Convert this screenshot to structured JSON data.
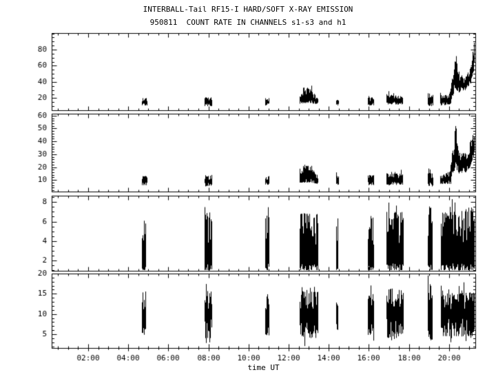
{
  "header": {
    "title": "INTERBALL-Tail RF15-I HARD/SOFT X-RAY EMISSION",
    "subtitle": "950811  COUNT RATE IN CHANNELS s1-s3 and h1"
  },
  "chart_data": {
    "type": "line",
    "title": "INTERBALL-Tail RF15-I HARD/SOFT X-RAY EMISSION",
    "subtitle": "950811  COUNT RATE IN CHANNELS s1-s3 and h1",
    "xlabel": "time UT",
    "background": "#ffffff",
    "line_color": "#000000",
    "x_range": [
      0.18,
      21.31
    ],
    "x_minor_step": 0.5,
    "x_major_ticks": [
      {
        "hour": 2,
        "label": "02:00"
      },
      {
        "hour": 4,
        "label": "04:00"
      },
      {
        "hour": 6,
        "label": "06:00"
      },
      {
        "hour": 8,
        "label": "08:00"
      },
      {
        "hour": 10,
        "label": "10:00"
      },
      {
        "hour": 12,
        "label": "12:00"
      },
      {
        "hour": 14,
        "label": "14:00"
      },
      {
        "hour": 16,
        "label": "16:00"
      },
      {
        "hour": 18,
        "label": "18:00"
      },
      {
        "hour": 20,
        "label": "20:00"
      }
    ],
    "grid": false,
    "legend": "none",
    "panels": [
      {
        "name": "channel-s1-count-rate",
        "ylim": [
          5,
          100.5
        ],
        "yticks": [
          20,
          40,
          60,
          80
        ],
        "yminor": 5,
        "jitter_top": 0.45,
        "jitter_bottom": 0.3,
        "spike_prob": 0.06,
        "spike_amp": 6,
        "down_prob": 0.0,
        "down_amp": 0,
        "bursts": [
          {
            "t0": 4.7,
            "t1": 4.9,
            "lo0": 11,
            "hi0": 20,
            "lo1": 11,
            "hi1": 20
          },
          {
            "t0": 7.82,
            "t1": 8.12,
            "lo0": 10,
            "hi0": 21,
            "lo1": 10,
            "hi1": 21
          },
          {
            "t0": 10.85,
            "t1": 11.0,
            "lo0": 11,
            "hi0": 20,
            "lo1": 11,
            "hi1": 20
          },
          {
            "t0": 12.55,
            "t1": 12.75,
            "lo0": 13,
            "hi0": 22,
            "lo1": 14,
            "hi1": 30
          },
          {
            "t0": 12.75,
            "t1": 13.15,
            "lo0": 14,
            "hi0": 33,
            "lo1": 14,
            "hi1": 33
          },
          {
            "t0": 13.15,
            "t1": 13.41,
            "lo0": 13,
            "hi0": 30,
            "lo1": 13,
            "hi1": 20
          },
          {
            "t0": 14.37,
            "t1": 14.45,
            "lo0": 11,
            "hi0": 20,
            "lo1": 11,
            "hi1": 20
          },
          {
            "t0": 15.98,
            "t1": 16.22,
            "lo0": 11,
            "hi0": 21,
            "lo1": 11,
            "hi1": 21
          },
          {
            "t0": 16.9,
            "t1": 17.1,
            "lo0": 12,
            "hi0": 24,
            "lo1": 12,
            "hi1": 24
          },
          {
            "t0": 17.13,
            "t1": 17.36,
            "lo0": 12,
            "hi0": 24,
            "lo1": 12,
            "hi1": 24
          },
          {
            "t0": 17.46,
            "t1": 17.65,
            "lo0": 12,
            "hi0": 24,
            "lo1": 12,
            "hi1": 24
          },
          {
            "t0": 18.97,
            "t1": 19.17,
            "lo0": 10,
            "hi0": 26,
            "lo1": 10,
            "hi1": 24
          },
          {
            "t0": 19.59,
            "t1": 20.05,
            "lo0": 11,
            "hi0": 22,
            "lo1": 12,
            "hi1": 26
          },
          {
            "t0": 20.05,
            "t1": 20.32,
            "lo0": 14,
            "hi0": 30,
            "lo1": 32,
            "hi1": 72
          },
          {
            "t0": 20.32,
            "t1": 20.48,
            "lo0": 30,
            "hi0": 70,
            "lo1": 28,
            "hi1": 52
          },
          {
            "t0": 20.48,
            "t1": 20.8,
            "lo0": 27,
            "hi0": 48,
            "lo1": 30,
            "hi1": 44
          },
          {
            "t0": 20.8,
            "t1": 21.05,
            "lo0": 30,
            "hi0": 46,
            "lo1": 38,
            "hi1": 58
          },
          {
            "t0": 21.05,
            "t1": 21.31,
            "lo0": 40,
            "hi0": 62,
            "lo1": 60,
            "hi1": 97
          }
        ]
      },
      {
        "name": "channel-s2-count-rate",
        "ylim": [
          1,
          61.5
        ],
        "yticks": [
          10,
          20,
          30,
          40,
          50,
          60
        ],
        "yminor": 2,
        "jitter_top": 0.45,
        "jitter_bottom": 0.3,
        "spike_prob": 0.06,
        "spike_amp": 4,
        "down_prob": 0.0,
        "down_amp": 0,
        "bursts": [
          {
            "t0": 4.7,
            "t1": 4.9,
            "lo0": 6,
            "hi0": 13,
            "lo1": 6,
            "hi1": 13
          },
          {
            "t0": 7.82,
            "t1": 8.12,
            "lo0": 5,
            "hi0": 14,
            "lo1": 5,
            "hi1": 14
          },
          {
            "t0": 10.85,
            "t1": 11.0,
            "lo0": 6,
            "hi0": 13,
            "lo1": 6,
            "hi1": 13
          },
          {
            "t0": 12.55,
            "t1": 12.75,
            "lo0": 8,
            "hi0": 15,
            "lo1": 8,
            "hi1": 19
          },
          {
            "t0": 12.75,
            "t1": 13.15,
            "lo0": 8,
            "hi0": 21,
            "lo1": 8,
            "hi1": 21
          },
          {
            "t0": 13.15,
            "t1": 13.41,
            "lo0": 8,
            "hi0": 19,
            "lo1": 7,
            "hi1": 14
          },
          {
            "t0": 14.37,
            "t1": 14.45,
            "lo0": 6,
            "hi0": 13,
            "lo1": 6,
            "hi1": 13
          },
          {
            "t0": 15.98,
            "t1": 16.22,
            "lo0": 6,
            "hi0": 14,
            "lo1": 6,
            "hi1": 14
          },
          {
            "t0": 16.9,
            "t1": 17.1,
            "lo0": 6,
            "hi0": 15,
            "lo1": 6,
            "hi1": 15
          },
          {
            "t0": 17.13,
            "t1": 17.36,
            "lo0": 6,
            "hi0": 15,
            "lo1": 6,
            "hi1": 15
          },
          {
            "t0": 17.46,
            "t1": 17.65,
            "lo0": 6,
            "hi0": 15,
            "lo1": 6,
            "hi1": 15
          },
          {
            "t0": 18.97,
            "t1": 19.17,
            "lo0": 5,
            "hi0": 16,
            "lo1": 5,
            "hi1": 15
          },
          {
            "t0": 19.59,
            "t1": 20.05,
            "lo0": 7,
            "hi0": 14,
            "lo1": 7,
            "hi1": 17
          },
          {
            "t0": 20.05,
            "t1": 20.32,
            "lo0": 9,
            "hi0": 20,
            "lo1": 20,
            "hi1": 53
          },
          {
            "t0": 20.32,
            "t1": 20.48,
            "lo0": 18,
            "hi0": 50,
            "lo1": 17,
            "hi1": 36
          },
          {
            "t0": 20.48,
            "t1": 20.8,
            "lo0": 15,
            "hi0": 33,
            "lo1": 16,
            "hi1": 30
          },
          {
            "t0": 20.8,
            "t1": 21.05,
            "lo0": 16,
            "hi0": 31,
            "lo1": 20,
            "hi1": 38
          },
          {
            "t0": 21.05,
            "t1": 21.31,
            "lo0": 22,
            "hi0": 40,
            "lo1": 30,
            "hi1": 52
          }
        ]
      },
      {
        "name": "channel-s3-count-rate",
        "ylim": [
          0.95,
          8.65
        ],
        "yticks": [
          2,
          4,
          6,
          8
        ],
        "yminor": 0.5,
        "jitter_top": 0.55,
        "jitter_bottom": 0.12,
        "spike_prob": 0.1,
        "spike_amp": 1.4,
        "down_prob": 0.05,
        "down_amp": 0.3,
        "bursts": [
          {
            "t0": 4.7,
            "t1": 4.82,
            "lo0": 1.0,
            "hi0": 6.2,
            "lo1": 1.0,
            "hi1": 6.2
          },
          {
            "t0": 7.82,
            "t1": 8.12,
            "lo0": 1.0,
            "hi0": 7.0,
            "lo1": 1.0,
            "hi1": 7.0
          },
          {
            "t0": 10.85,
            "t1": 10.97,
            "lo0": 1.0,
            "hi0": 6.6,
            "lo1": 1.0,
            "hi1": 6.6
          },
          {
            "t0": 12.55,
            "t1": 13.41,
            "lo0": 1.0,
            "hi0": 6.8,
            "lo1": 1.0,
            "hi1": 6.8
          },
          {
            "t0": 14.37,
            "t1": 14.43,
            "lo0": 1.0,
            "hi0": 6.5,
            "lo1": 1.0,
            "hi1": 6.5
          },
          {
            "t0": 15.98,
            "t1": 16.22,
            "lo0": 1.0,
            "hi0": 6.6,
            "lo1": 1.0,
            "hi1": 6.6
          },
          {
            "t0": 16.9,
            "t1": 17.1,
            "lo0": 1.0,
            "hi0": 7.0,
            "lo1": 1.0,
            "hi1": 7.0
          },
          {
            "t0": 17.13,
            "t1": 17.36,
            "lo0": 1.0,
            "hi0": 7.0,
            "lo1": 1.0,
            "hi1": 7.0
          },
          {
            "t0": 17.46,
            "t1": 17.7,
            "lo0": 1.0,
            "hi0": 7.0,
            "lo1": 1.0,
            "hi1": 7.0
          },
          {
            "t0": 18.97,
            "t1": 19.12,
            "lo0": 1.0,
            "hi0": 7.6,
            "lo1": 1.0,
            "hi1": 7.4
          },
          {
            "t0": 19.62,
            "t1": 21.31,
            "lo0": 1.0,
            "hi0": 6.9,
            "lo1": 1.0,
            "hi1": 7.2
          }
        ]
      },
      {
        "name": "channel-h1-count-rate",
        "ylim": [
          1.6,
          20.0
        ],
        "yticks": [
          5,
          10,
          15,
          20
        ],
        "yminor": 1,
        "jitter_top": 0.4,
        "jitter_bottom": 0.4,
        "spike_prob": 0.1,
        "spike_amp": 2.8,
        "down_prob": 0.1,
        "down_amp": 2.0,
        "bursts": [
          {
            "t0": 4.7,
            "t1": 4.82,
            "lo0": 4.5,
            "hi0": 15.5,
            "lo1": 4.5,
            "hi1": 15.5
          },
          {
            "t0": 7.82,
            "t1": 8.12,
            "lo0": 4.0,
            "hi0": 16.0,
            "lo1": 4.0,
            "hi1": 16.0
          },
          {
            "t0": 10.85,
            "t1": 10.97,
            "lo0": 4.5,
            "hi0": 15.0,
            "lo1": 4.5,
            "hi1": 15.0
          },
          {
            "t0": 12.55,
            "t1": 13.41,
            "lo0": 4.0,
            "hi0": 15.5,
            "lo1": 4.0,
            "hi1": 15.5
          },
          {
            "t0": 14.37,
            "t1": 14.43,
            "lo0": 6.0,
            "hi0": 13.0,
            "lo1": 6.0,
            "hi1": 13.0
          },
          {
            "t0": 15.98,
            "t1": 16.22,
            "lo0": 4.5,
            "hi0": 14.5,
            "lo1": 4.5,
            "hi1": 14.5
          },
          {
            "t0": 16.9,
            "t1": 17.1,
            "lo0": 4.0,
            "hi0": 16.5,
            "lo1": 4.0,
            "hi1": 16.5
          },
          {
            "t0": 17.13,
            "t1": 17.36,
            "lo0": 4.0,
            "hi0": 16.5,
            "lo1": 4.0,
            "hi1": 16.5
          },
          {
            "t0": 17.46,
            "t1": 17.7,
            "lo0": 4.5,
            "hi0": 16.0,
            "lo1": 4.5,
            "hi1": 16.0
          },
          {
            "t0": 18.97,
            "t1": 19.12,
            "lo0": 3.5,
            "hi0": 17.0,
            "lo1": 3.5,
            "hi1": 17.0
          },
          {
            "t0": 19.62,
            "t1": 21.31,
            "lo0": 4.5,
            "hi0": 15.0,
            "lo1": 4.5,
            "hi1": 15.5
          }
        ]
      }
    ]
  }
}
